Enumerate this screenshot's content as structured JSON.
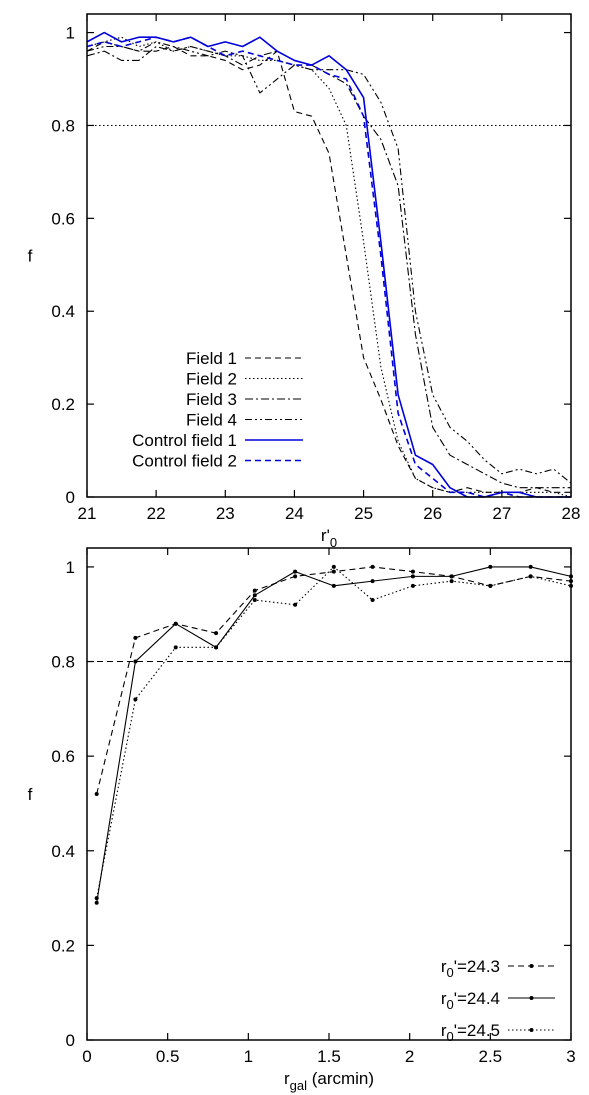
{
  "chart_data": [
    {
      "type": "line",
      "xlabel": "r'",
      "xlabel_sub": "0",
      "ylabel": "f",
      "xlim": [
        21,
        28
      ],
      "ylim": [
        0,
        1.04
      ],
      "x_ticks": [
        21,
        22,
        23,
        24,
        25,
        26,
        27,
        28
      ],
      "y_ticks": [
        0,
        0.2,
        0.4,
        0.6,
        0.8,
        1
      ],
      "x_tick_labels": [
        "21",
        "22",
        "23",
        "24",
        "25",
        "26",
        "27",
        "28"
      ],
      "y_tick_labels": [
        "0",
        "0.2",
        "0.4",
        "0.6",
        "0.8",
        "1"
      ],
      "legend_position": "bottom-left",
      "reference_line": {
        "y": 0.8,
        "style": "dotted"
      },
      "series": [
        {
          "name": "Field 1",
          "color": "#000000",
          "dash": "dashed",
          "x": [
            21.0,
            21.25,
            21.5,
            21.75,
            22.0,
            22.25,
            22.5,
            22.75,
            23.0,
            23.25,
            23.5,
            23.75,
            24.0,
            24.25,
            24.5,
            24.75,
            25.0,
            25.25,
            25.5,
            25.75,
            26.0,
            26.25,
            26.5,
            26.75,
            27.0,
            27.25,
            27.5,
            27.75,
            28.0
          ],
          "y": [
            0.96,
            0.98,
            0.97,
            0.96,
            0.96,
            0.97,
            0.95,
            0.95,
            0.94,
            0.92,
            0.93,
            0.96,
            0.83,
            0.82,
            0.74,
            0.52,
            0.3,
            0.21,
            0.11,
            0.04,
            0.02,
            0.01,
            0.02,
            0.01,
            0.01,
            0.01,
            0.02,
            0.01,
            0.01
          ]
        },
        {
          "name": "Field 2",
          "color": "#000000",
          "dash": "dotted",
          "x": [
            21.0,
            21.25,
            21.5,
            21.75,
            22.0,
            22.25,
            22.5,
            22.75,
            23.0,
            23.25,
            23.5,
            23.75,
            24.0,
            24.25,
            24.5,
            24.75,
            25.0,
            25.25,
            25.5,
            25.75,
            26.0,
            26.25,
            26.5,
            26.75,
            27.0,
            27.25,
            27.5,
            27.75,
            28.0
          ],
          "y": [
            0.97,
            0.98,
            0.99,
            0.97,
            0.98,
            0.96,
            0.97,
            0.96,
            0.95,
            0.95,
            0.94,
            0.94,
            0.93,
            0.92,
            0.88,
            0.8,
            0.55,
            0.28,
            0.12,
            0.04,
            0.02,
            0.01,
            0.01,
            0.01,
            0.01,
            0.01,
            0.01,
            0.01,
            0.0
          ]
        },
        {
          "name": "Field 3",
          "color": "#000000",
          "dash": "dashdot",
          "x": [
            21.0,
            21.25,
            21.5,
            21.75,
            22.0,
            22.25,
            22.5,
            22.75,
            23.0,
            23.25,
            23.5,
            23.75,
            24.0,
            24.25,
            24.5,
            24.75,
            25.0,
            25.25,
            25.5,
            25.75,
            26.0,
            26.25,
            26.5,
            26.75,
            27.0,
            27.25,
            27.5,
            27.75,
            28.0
          ],
          "y": [
            0.95,
            0.96,
            0.94,
            0.94,
            0.97,
            0.96,
            0.97,
            0.96,
            0.95,
            0.93,
            0.95,
            0.96,
            0.94,
            0.93,
            0.91,
            0.89,
            0.82,
            0.77,
            0.67,
            0.35,
            0.15,
            0.09,
            0.07,
            0.05,
            0.03,
            0.02,
            0.02,
            0.02,
            0.02
          ]
        },
        {
          "name": "Field 4",
          "color": "#000000",
          "dash": "dashdotdot",
          "x": [
            21.0,
            21.25,
            21.5,
            21.75,
            22.0,
            22.25,
            22.5,
            22.75,
            23.0,
            23.25,
            23.5,
            23.75,
            24.0,
            24.25,
            24.5,
            24.75,
            25.0,
            25.25,
            25.5,
            25.75,
            26.0,
            26.25,
            26.5,
            26.75,
            27.0,
            27.25,
            27.5,
            27.75,
            28.0
          ],
          "y": [
            0.96,
            0.97,
            0.97,
            0.96,
            0.98,
            0.97,
            0.96,
            0.95,
            0.96,
            0.95,
            0.87,
            0.9,
            0.93,
            0.92,
            0.92,
            0.92,
            0.91,
            0.85,
            0.75,
            0.4,
            0.22,
            0.15,
            0.12,
            0.08,
            0.05,
            0.06,
            0.05,
            0.06,
            0.03
          ]
        },
        {
          "name": "Control field 1",
          "color": "#0000dd",
          "dash": "solid",
          "x": [
            21.0,
            21.25,
            21.5,
            21.75,
            22.0,
            22.25,
            22.5,
            22.75,
            23.0,
            23.25,
            23.5,
            23.75,
            24.0,
            24.25,
            24.5,
            24.75,
            25.0,
            25.25,
            25.5,
            25.75,
            26.0,
            26.25,
            26.5,
            26.75,
            27.0,
            27.25,
            27.5,
            27.75,
            28.0
          ],
          "y": [
            0.98,
            1.0,
            0.98,
            0.99,
            0.99,
            0.98,
            0.99,
            0.97,
            0.98,
            0.97,
            0.99,
            0.96,
            0.94,
            0.93,
            0.95,
            0.92,
            0.86,
            0.55,
            0.22,
            0.09,
            0.07,
            0.02,
            0.0,
            0.0,
            0.01,
            0.01,
            0.0,
            0.0,
            0.0
          ]
        },
        {
          "name": "Control field 2",
          "color": "#0000dd",
          "dash": "dashed",
          "x": [
            21.0,
            21.25,
            21.5,
            21.75,
            22.0,
            22.25,
            22.5,
            22.75,
            23.0,
            23.25,
            23.5,
            23.75,
            24.0,
            24.25,
            24.5,
            24.75,
            25.0,
            25.25,
            25.5,
            25.75,
            26.0,
            26.25,
            26.5,
            26.75,
            27.0,
            27.25,
            27.5,
            27.75,
            28.0
          ],
          "y": [
            0.97,
            0.98,
            0.97,
            0.98,
            0.99,
            0.98,
            0.99,
            0.97,
            0.95,
            0.96,
            0.95,
            0.94,
            0.93,
            0.93,
            0.91,
            0.9,
            0.82,
            0.52,
            0.18,
            0.07,
            0.04,
            0.01,
            0.01,
            0.0,
            0.01,
            0.0,
            0.0,
            0.0,
            0.0
          ]
        }
      ]
    },
    {
      "type": "line",
      "xlabel": "r",
      "xlabel_sub": "gal",
      "xlabel_suffix": " (arcmin)",
      "ylabel": "f",
      "xlim": [
        0,
        3
      ],
      "ylim": [
        0,
        1.04
      ],
      "x_ticks": [
        0,
        0.5,
        1,
        1.5,
        2,
        2.5,
        3
      ],
      "y_ticks": [
        0,
        0.2,
        0.4,
        0.6,
        0.8,
        1
      ],
      "x_tick_labels": [
        "0",
        "0.5",
        "1",
        "1.5",
        "2",
        "2.5",
        "3"
      ],
      "y_tick_labels": [
        "0",
        "0.2",
        "0.4",
        "0.6",
        "0.8",
        "1"
      ],
      "legend_position": "bottom-right",
      "reference_line": {
        "y": 0.8,
        "style": "dashed"
      },
      "series": [
        {
          "name_main": "r",
          "name_sub": "0",
          "name_rest": "'=24.3",
          "color": "#000000",
          "dash": "dashed",
          "x": [
            0.06,
            0.3,
            0.55,
            0.8,
            1.04,
            1.29,
            1.53,
            1.77,
            2.02,
            2.26,
            2.5,
            2.75,
            3.0
          ],
          "y": [
            0.52,
            0.85,
            0.88,
            0.86,
            0.95,
            0.98,
            0.99,
            1.0,
            0.99,
            0.98,
            0.96,
            0.98,
            0.97
          ]
        },
        {
          "name_main": "r",
          "name_sub": "0",
          "name_rest": "'=24.4",
          "color": "#000000",
          "dash": "solid",
          "x": [
            0.06,
            0.3,
            0.55,
            0.8,
            1.04,
            1.29,
            1.53,
            1.77,
            2.02,
            2.26,
            2.5,
            2.75,
            3.0
          ],
          "y": [
            0.29,
            0.8,
            0.88,
            0.83,
            0.94,
            0.99,
            0.96,
            0.97,
            0.98,
            0.98,
            1.0,
            1.0,
            0.98
          ]
        },
        {
          "name_main": "r",
          "name_sub": "0",
          "name_rest": "'=24.5",
          "color": "#000000",
          "dash": "dotted",
          "x": [
            0.06,
            0.3,
            0.55,
            0.8,
            1.04,
            1.29,
            1.53,
            1.77,
            2.02,
            2.26,
            2.5,
            2.75,
            3.0
          ],
          "y": [
            0.3,
            0.72,
            0.83,
            0.83,
            0.93,
            0.92,
            1.0,
            0.93,
            0.96,
            0.97,
            0.96,
            0.98,
            0.96
          ]
        }
      ]
    }
  ]
}
